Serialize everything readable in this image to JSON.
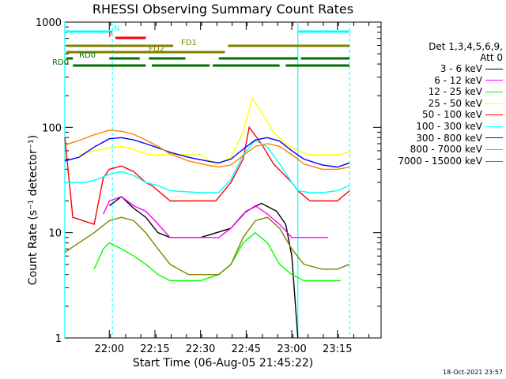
{
  "chart_data": {
    "type": "line",
    "title": "RHESSI Observing Summary Count Rates",
    "xlabel": "Start Time (06-Aug-05 21:45:22)",
    "ylabel": "Count Rate (s⁻¹ detector⁻¹)",
    "yscale": "log",
    "ylim": [
      1,
      1000
    ],
    "xlim_minutes_since_start": [
      0,
      104
    ],
    "x_ticks": [
      "22:00",
      "22:15",
      "22:30",
      "22:45",
      "23:00",
      "23:15"
    ],
    "y_ticks": [
      "1",
      "10",
      "100",
      "1000"
    ],
    "detectors": "Det 1,3,4,5,6,9,",
    "attenuator": "Att 0",
    "timestamp": "18-Oct-2021 23:57",
    "flags": [
      {
        "label": "N",
        "color": "#00ffff",
        "segments": [
          [
            "21:45",
            "22:01"
          ],
          [
            "23:02",
            "23:19"
          ]
        ]
      },
      {
        "label": "F",
        "color": "#ff0000",
        "segments": [
          [
            "22:02",
            "22:12"
          ]
        ]
      },
      {
        "label": "FD1",
        "color": "#808000",
        "segments": [
          [
            "21:45",
            "22:21"
          ],
          [
            "22:39",
            "23:19"
          ]
        ]
      },
      {
        "label": "FD2",
        "color": "#808000",
        "segments": [
          [
            "21:45",
            "22:38"
          ]
        ]
      },
      {
        "label": "RD0",
        "color": "#007000",
        "segments": [
          [
            "21:45",
            "21:48"
          ],
          [
            "22:00",
            "22:10"
          ],
          [
            "22:13",
            "22:25"
          ],
          [
            "22:36",
            "23:02"
          ],
          [
            "23:03",
            "23:19"
          ]
        ]
      },
      {
        "label": "RD0",
        "color": "#007000",
        "segments": [
          [
            "21:48",
            "22:12"
          ],
          [
            "22:14",
            "22:33"
          ],
          [
            "22:34",
            "22:56"
          ],
          [
            "22:58",
            "23:19"
          ]
        ]
      }
    ],
    "series": [
      {
        "name": "3 - 6 keV",
        "color": "#000000",
        "x": [
          "22:00",
          "22:04",
          "22:08",
          "22:12",
          "22:16",
          "22:20",
          "22:30",
          "22:40",
          "22:45",
          "22:50",
          "22:55",
          "22:58",
          "23:00",
          "23:02"
        ],
        "values": [
          18,
          22,
          17,
          14,
          10,
          9,
          9,
          11,
          16,
          19,
          16,
          12,
          6,
          0.8
        ]
      },
      {
        "name": "6 - 12 keV",
        "color": "#ff00ff",
        "x": [
          "21:58",
          "22:00",
          "22:04",
          "22:08",
          "22:12",
          "22:15",
          "22:20",
          "22:30",
          "22:36",
          "22:40",
          "22:44",
          "22:48",
          "22:52",
          "22:56",
          "23:00",
          "23:04",
          "23:08",
          "23:12"
        ],
        "values": [
          15,
          20,
          22,
          18,
          16,
          13,
          9,
          9,
          9,
          11,
          15,
          18,
          15,
          12,
          9,
          9,
          9,
          9
        ]
      },
      {
        "name": "12 - 25 keV",
        "color": "#00ff00",
        "x": [
          "21:55",
          "21:58",
          "22:00",
          "22:04",
          "22:08",
          "22:12",
          "22:16",
          "22:20",
          "22:30",
          "22:36",
          "22:40",
          "22:44",
          "22:48",
          "22:52",
          "22:56",
          "23:00",
          "23:04",
          "23:08",
          "23:12",
          "23:16"
        ],
        "values": [
          4.5,
          7,
          8,
          7,
          6,
          5,
          4,
          3.5,
          3.5,
          4,
          5,
          8,
          10,
          8,
          5,
          4,
          3.5,
          3.5,
          3.5,
          3.5
        ]
      },
      {
        "name": "25 - 50 keV",
        "color": "#ffff00",
        "x": [
          "21:50",
          "21:55",
          "22:00",
          "22:04",
          "22:08",
          "22:12",
          "22:14",
          "22:20",
          "22:30",
          "22:35",
          "22:40",
          "22:44",
          "22:47",
          "22:50",
          "22:54",
          "22:58",
          "23:02",
          "23:06",
          "23:10",
          "23:15",
          "23:19"
        ],
        "values": [
          55,
          60,
          64,
          66,
          62,
          56,
          55,
          55,
          55,
          44,
          52,
          90,
          190,
          140,
          90,
          70,
          60,
          55,
          55,
          55,
          58
        ]
      },
      {
        "name": "50 - 100 keV",
        "color": "#ff0000",
        "x": [
          "21:45",
          "21:48",
          "21:55",
          "21:58",
          "22:00",
          "22:04",
          "22:08",
          "22:12",
          "22:14",
          "22:20",
          "22:30",
          "22:35",
          "22:40",
          "22:44",
          "22:46",
          "22:50",
          "22:54",
          "23:00",
          "23:02",
          "23:06",
          "23:10",
          "23:15",
          "23:19"
        ],
        "values": [
          80,
          14,
          12,
          33,
          40,
          43,
          38,
          30,
          28,
          20,
          20,
          20,
          30,
          50,
          100,
          70,
          45,
          30,
          25,
          20,
          20,
          20,
          25
        ]
      },
      {
        "name": "100 - 300 keV",
        "color": "#00ffff",
        "x": [
          "21:45",
          "21:48",
          "21:52",
          "21:56",
          "22:00",
          "22:04",
          "22:08",
          "22:12",
          "22:16",
          "22:20",
          "22:30",
          "22:36",
          "22:40",
          "22:44",
          "22:48",
          "22:52",
          "22:56",
          "23:00",
          "23:02",
          "23:06",
          "23:10",
          "23:15",
          "23:19"
        ],
        "values": [
          30,
          30,
          30,
          32,
          36,
          38,
          35,
          30,
          28,
          25,
          24,
          24,
          32,
          55,
          75,
          65,
          45,
          30,
          25,
          24,
          24,
          25,
          28
        ]
      },
      {
        "name": "300 - 800 keV",
        "color": "#0000ff",
        "x": [
          "21:45",
          "21:50",
          "21:55",
          "22:00",
          "22:04",
          "22:08",
          "22:12",
          "22:16",
          "22:20",
          "22:26",
          "22:32",
          "22:36",
          "22:40",
          "22:44",
          "22:48",
          "22:52",
          "22:56",
          "23:00",
          "23:04",
          "23:10",
          "23:15",
          "23:19"
        ],
        "values": [
          48,
          52,
          65,
          78,
          80,
          76,
          70,
          64,
          58,
          52,
          48,
          46,
          50,
          62,
          76,
          80,
          74,
          60,
          50,
          44,
          42,
          46
        ]
      },
      {
        "name": "800 - 7000 keV",
        "color": "#ff8000",
        "x": [
          "21:45",
          "21:50",
          "21:55",
          "22:00",
          "22:04",
          "22:08",
          "22:12",
          "22:16",
          "22:20",
          "22:26",
          "22:32",
          "22:36",
          "22:40",
          "22:44",
          "22:48",
          "22:52",
          "22:56",
          "23:00",
          "23:04",
          "23:10",
          "23:15",
          "23:19"
        ],
        "values": [
          68,
          75,
          85,
          94,
          92,
          86,
          76,
          66,
          56,
          48,
          44,
          42,
          44,
          54,
          66,
          70,
          66,
          55,
          45,
          40,
          40,
          42
        ]
      },
      {
        "name": "7000 - 15000 keV",
        "color": "#808000",
        "x": [
          "21:45",
          "21:50",
          "21:55",
          "22:00",
          "22:04",
          "22:08",
          "22:12",
          "22:16",
          "22:20",
          "22:26",
          "22:32",
          "22:36",
          "22:40",
          "22:44",
          "22:48",
          "22:52",
          "22:56",
          "23:00",
          "23:04",
          "23:10",
          "23:15",
          "23:19"
        ],
        "values": [
          6.5,
          8,
          10,
          13,
          14,
          13,
          10,
          7,
          5,
          4,
          4,
          4,
          5,
          9,
          13,
          14,
          11,
          7,
          5,
          4.5,
          4.5,
          5
        ]
      }
    ]
  }
}
